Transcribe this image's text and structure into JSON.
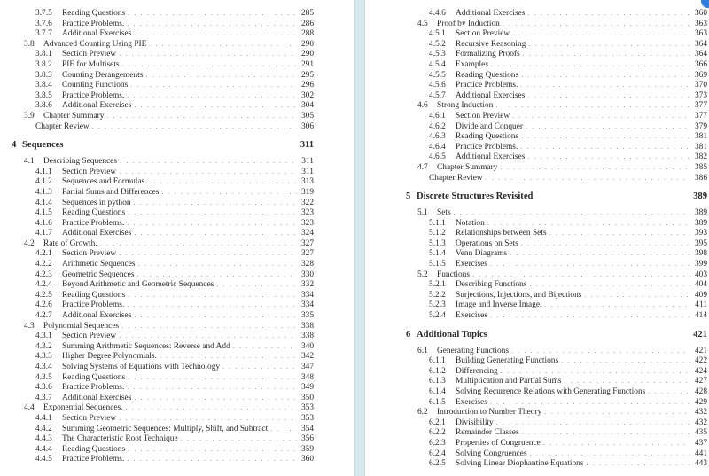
{
  "pages": [
    {
      "id": "left",
      "entries": [
        {
          "type": "sub",
          "num": "3.7.5",
          "title": "Reading Questions",
          "page": "285"
        },
        {
          "type": "sub",
          "num": "3.7.6",
          "title": "Practice Problems.",
          "page": "286"
        },
        {
          "type": "sub",
          "num": "3.7.7",
          "title": "Additional Exercises",
          "page": "288"
        },
        {
          "type": "sec",
          "num": "3.8",
          "title": "Advanced Counting Using PIE",
          "page": "290"
        },
        {
          "type": "sub",
          "num": "3.8.1",
          "title": "Section Preview",
          "page": "290"
        },
        {
          "type": "sub",
          "num": "3.8.2",
          "title": "PIE for Multisets",
          "page": "291"
        },
        {
          "type": "sub",
          "num": "3.8.3",
          "title": "Counting Derangements",
          "page": "295"
        },
        {
          "type": "sub",
          "num": "3.8.4",
          "title": "Counting Functions",
          "page": "296"
        },
        {
          "type": "sub",
          "num": "3.8.5",
          "title": "Practice Problems.",
          "page": "302"
        },
        {
          "type": "sub",
          "num": "3.8.6",
          "title": "Additional Exercises",
          "page": "304"
        },
        {
          "type": "sec",
          "num": "3.9",
          "title": "Chapter Summary",
          "page": "305"
        },
        {
          "type": "plain",
          "num": "",
          "title": "Chapter Review",
          "page": "306"
        },
        {
          "type": "chap",
          "num": "4",
          "title": "Sequences",
          "page": "311"
        },
        {
          "type": "sec",
          "num": "4.1",
          "title": "Describing Sequences",
          "page": "311"
        },
        {
          "type": "sub",
          "num": "4.1.1",
          "title": "Section Preview",
          "page": "311"
        },
        {
          "type": "sub",
          "num": "4.1.2",
          "title": "Sequences and Formulas",
          "page": "313"
        },
        {
          "type": "sub",
          "num": "4.1.3",
          "title": "Partial Sums and Differences",
          "page": "319"
        },
        {
          "type": "sub",
          "num": "4.1.4",
          "title": "Sequences in python",
          "page": "322"
        },
        {
          "type": "sub",
          "num": "4.1.5",
          "title": "Reading Questions",
          "page": "323"
        },
        {
          "type": "sub",
          "num": "4.1.6",
          "title": "Practice Problems.",
          "page": "323"
        },
        {
          "type": "sub",
          "num": "4.1.7",
          "title": "Additional Exercises",
          "page": "324"
        },
        {
          "type": "sec",
          "num": "4.2",
          "title": "Rate of Growth.",
          "page": "327"
        },
        {
          "type": "sub",
          "num": "4.2.1",
          "title": "Section Preview",
          "page": "327"
        },
        {
          "type": "sub",
          "num": "4.2.2",
          "title": "Arithmetic Sequences",
          "page": "328"
        },
        {
          "type": "sub",
          "num": "4.2.3",
          "title": "Geometric Sequences",
          "page": "330"
        },
        {
          "type": "sub",
          "num": "4.2.4",
          "title": "Beyond Arithmetic and Geometric Sequences",
          "page": "332"
        },
        {
          "type": "sub",
          "num": "4.2.5",
          "title": "Reading Questions",
          "page": "334"
        },
        {
          "type": "sub",
          "num": "4.2.6",
          "title": "Practice Problems.",
          "page": "334"
        },
        {
          "type": "sub",
          "num": "4.2.7",
          "title": "Additional Exercises",
          "page": "335"
        },
        {
          "type": "sec",
          "num": "4.3",
          "title": "Polynomial Sequences",
          "page": "338"
        },
        {
          "type": "sub",
          "num": "4.3.1",
          "title": "Section Preview",
          "page": "338"
        },
        {
          "type": "sub",
          "num": "4.3.2",
          "title": "Summing Arithmetic Sequences: Reverse and Add",
          "page": "340"
        },
        {
          "type": "sub",
          "num": "4.3.3",
          "title": "Higher Degree Polynomials.",
          "page": "342"
        },
        {
          "type": "sub",
          "num": "4.3.4",
          "title": "Solving Systems of Equations with Technology",
          "page": "347"
        },
        {
          "type": "sub",
          "num": "4.3.5",
          "title": "Reading Questions",
          "page": "348"
        },
        {
          "type": "sub",
          "num": "4.3.6",
          "title": "Practice Problems.",
          "page": "349"
        },
        {
          "type": "sub",
          "num": "4.3.7",
          "title": "Additional Exercises",
          "page": "350"
        },
        {
          "type": "sec",
          "num": "4.4",
          "title": "Exponential Sequences.",
          "page": "353"
        },
        {
          "type": "sub",
          "num": "4.4.1",
          "title": "Section Preview",
          "page": "353"
        },
        {
          "type": "sub",
          "num": "4.4.2",
          "title": "Summing Geometric Sequences: Multiply, Shift, and Subtract",
          "page": "354"
        },
        {
          "type": "sub",
          "num": "4.4.3",
          "title": "The Characteristic Root Technique",
          "page": "356"
        },
        {
          "type": "sub",
          "num": "4.4.4",
          "title": "Reading Questions",
          "page": "359"
        },
        {
          "type": "sub",
          "num": "4.4.5",
          "title": "Practice Problems.",
          "page": "360"
        }
      ]
    },
    {
      "id": "right",
      "entries": [
        {
          "type": "sub",
          "num": "4.4.6",
          "title": "Additional Exercises",
          "page": "360"
        },
        {
          "type": "sec",
          "num": "4.5",
          "title": "Proof by Induction",
          "page": "363"
        },
        {
          "type": "sub",
          "num": "4.5.1",
          "title": "Section Preview",
          "page": "363"
        },
        {
          "type": "sub",
          "num": "4.5.2",
          "title": "Recursive Reasoning",
          "page": "364"
        },
        {
          "type": "sub",
          "num": "4.5.3",
          "title": "Formalizing Proofs",
          "page": "364"
        },
        {
          "type": "sub",
          "num": "4.5.4",
          "title": "Examples",
          "page": "366"
        },
        {
          "type": "sub",
          "num": "4.5.5",
          "title": "Reading Questions",
          "page": "369"
        },
        {
          "type": "sub",
          "num": "4.5.6",
          "title": "Practice Problems.",
          "page": "370"
        },
        {
          "type": "sub",
          "num": "4.5.7",
          "title": "Additional Exercises",
          "page": "373"
        },
        {
          "type": "sec",
          "num": "4.6",
          "title": "Strong Induction",
          "page": "377"
        },
        {
          "type": "sub",
          "num": "4.6.1",
          "title": "Section Preview",
          "page": "377"
        },
        {
          "type": "sub",
          "num": "4.6.2",
          "title": "Divide and Conquer",
          "page": "379"
        },
        {
          "type": "sub",
          "num": "4.6.3",
          "title": "Reading Questions",
          "page": "381"
        },
        {
          "type": "sub",
          "num": "4.6.4",
          "title": "Practice Problems.",
          "page": "381"
        },
        {
          "type": "sub",
          "num": "4.6.5",
          "title": "Additional Exercises",
          "page": "382"
        },
        {
          "type": "sec",
          "num": "4.7",
          "title": "Chapter Summary",
          "page": "385"
        },
        {
          "type": "plain",
          "num": "",
          "title": "Chapter Review",
          "page": "386"
        },
        {
          "type": "chap",
          "num": "5",
          "title": "Discrete Structures Revisited",
          "page": "389"
        },
        {
          "type": "sec",
          "num": "5.1",
          "title": "Sets",
          "page": "389"
        },
        {
          "type": "sub",
          "num": "5.1.1",
          "title": "Notation",
          "page": "389"
        },
        {
          "type": "sub",
          "num": "5.1.2",
          "title": "Relationships between Sets",
          "page": "393"
        },
        {
          "type": "sub",
          "num": "5.1.3",
          "title": "Operations on Sets",
          "page": "395"
        },
        {
          "type": "sub",
          "num": "5.1.4",
          "title": "Venn Diagrams",
          "page": "398"
        },
        {
          "type": "sub",
          "num": "5.1.5",
          "title": "Exercises",
          "page": "399"
        },
        {
          "type": "sec",
          "num": "5.2",
          "title": "Functions",
          "page": "403"
        },
        {
          "type": "sub",
          "num": "5.2.1",
          "title": "Describing Functions",
          "page": "404"
        },
        {
          "type": "sub",
          "num": "5.2.2",
          "title": "Surjections, Injections, and Bijections",
          "page": "409"
        },
        {
          "type": "sub",
          "num": "5.2.3",
          "title": "Image and Inverse Image.",
          "page": "411"
        },
        {
          "type": "sub",
          "num": "5.2.4",
          "title": "Exercises",
          "page": "414"
        },
        {
          "type": "chap",
          "num": "6",
          "title": "Additional Topics",
          "page": "421"
        },
        {
          "type": "sec",
          "num": "6.1",
          "title": "Generating Functions",
          "page": "421"
        },
        {
          "type": "sub",
          "num": "6.1.1",
          "title": "Building Generating Functions",
          "page": "422"
        },
        {
          "type": "sub",
          "num": "6.1.2",
          "title": "Differencing",
          "page": "424"
        },
        {
          "type": "sub",
          "num": "6.1.3",
          "title": "Multiplication and Partial Sums",
          "page": "427"
        },
        {
          "type": "sub",
          "num": "6.1.4",
          "title": "Solving Recurrence Relations with Generating Functions",
          "page": "428"
        },
        {
          "type": "sub",
          "num": "6.1.5",
          "title": "Exercises",
          "page": "429"
        },
        {
          "type": "sec",
          "num": "6.2",
          "title": "Introduction to Number Theory",
          "page": "432"
        },
        {
          "type": "sub",
          "num": "6.2.1",
          "title": "Divisibility",
          "page": "432"
        },
        {
          "type": "sub",
          "num": "6.2.2",
          "title": "Remainder Classes",
          "page": "435"
        },
        {
          "type": "sub",
          "num": "6.2.3",
          "title": "Properties of Congruence",
          "page": "437"
        },
        {
          "type": "sub",
          "num": "6.2.4",
          "title": "Solving Congruences",
          "page": "441"
        },
        {
          "type": "sub",
          "num": "6.2.5",
          "title": "Solving Linear Diophantine Equations",
          "page": "443"
        }
      ]
    }
  ],
  "colors": {
    "divider": "#d6e8ec",
    "accent_button": "#2f7fe0"
  }
}
